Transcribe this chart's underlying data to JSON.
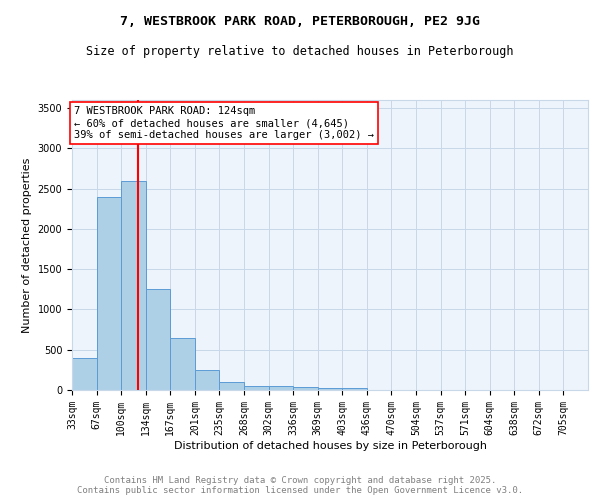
{
  "title": "7, WESTBROOK PARK ROAD, PETERBOROUGH, PE2 9JG",
  "subtitle": "Size of property relative to detached houses in Peterborough",
  "xlabel": "Distribution of detached houses by size in Peterborough",
  "ylabel": "Number of detached properties",
  "categories": [
    "33sqm",
    "67sqm",
    "100sqm",
    "134sqm",
    "167sqm",
    "201sqm",
    "235sqm",
    "268sqm",
    "302sqm",
    "336sqm",
    "369sqm",
    "403sqm",
    "436sqm",
    "470sqm",
    "504sqm",
    "537sqm",
    "571sqm",
    "604sqm",
    "638sqm",
    "672sqm",
    "705sqm"
  ],
  "values": [
    400,
    2400,
    2600,
    1250,
    650,
    250,
    100,
    55,
    50,
    40,
    30,
    25,
    0,
    0,
    0,
    0,
    0,
    0,
    0,
    0,
    0
  ],
  "bar_color": "#aed0e6",
  "bar_edge_color": "#5b9bd5",
  "vline_x": 2.67,
  "vline_color": "red",
  "annotation_text": "7 WESTBROOK PARK ROAD: 124sqm\n← 60% of detached houses are smaller (4,645)\n39% of semi-detached houses are larger (3,002) →",
  "ylim": [
    0,
    3600
  ],
  "yticks": [
    0,
    500,
    1000,
    1500,
    2000,
    2500,
    3000,
    3500
  ],
  "background_color": "#eef4fb",
  "grid_color": "#c8d8e8",
  "footer_line1": "Contains HM Land Registry data © Crown copyright and database right 2025.",
  "footer_line2": "Contains public sector information licensed under the Open Government Licence v3.0.",
  "title_fontsize": 9.5,
  "subtitle_fontsize": 8.5,
  "axis_label_fontsize": 8,
  "tick_fontsize": 7,
  "annotation_fontsize": 7.5,
  "footer_fontsize": 6.5
}
